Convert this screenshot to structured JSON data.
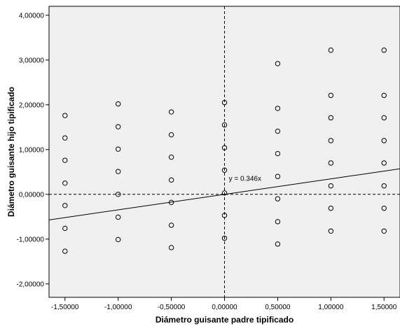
{
  "chart_data": {
    "type": "scatter",
    "xlabel": "Diámetro guisante padre tipificado",
    "ylabel": "Diámetro guisante hijo tipificado",
    "xlim": [
      -1.65,
      1.65
    ],
    "ylim": [
      -2.3,
      4.2
    ],
    "x_ticks": [
      -1.5,
      -1.0,
      -0.5,
      0.0,
      0.5,
      1.0,
      1.5
    ],
    "x_tick_labels": [
      "-1,50000",
      "-1,00000",
      "-0,50000",
      "0,00000",
      "0,50000",
      "1,00000",
      "1,50000"
    ],
    "y_ticks": [
      -2.0,
      -1.0,
      0.0,
      1.0,
      2.0,
      3.0,
      4.0
    ],
    "y_tick_labels": [
      "-2,00000",
      "-1,00000",
      "0,00000",
      "1,00000",
      "2,00000",
      "3,00000",
      "4,00000"
    ],
    "reference_lines": {
      "x": 0,
      "y": 0
    },
    "fit_line": {
      "slope": 0.346,
      "intercept": 0,
      "label": "y = 0.346x"
    },
    "points": [
      {
        "x": -1.5,
        "y": 1.76
      },
      {
        "x": -1.5,
        "y": 1.26
      },
      {
        "x": -1.5,
        "y": 0.76
      },
      {
        "x": -1.5,
        "y": 0.25
      },
      {
        "x": -1.5,
        "y": -0.25
      },
      {
        "x": -1.5,
        "y": -0.76
      },
      {
        "x": -1.5,
        "y": -1.27
      },
      {
        "x": -1.0,
        "y": 2.02
      },
      {
        "x": -1.0,
        "y": 1.51
      },
      {
        "x": -1.0,
        "y": 1.01
      },
      {
        "x": -1.0,
        "y": 0.51
      },
      {
        "x": -1.0,
        "y": 0.0
      },
      {
        "x": -1.0,
        "y": -0.51
      },
      {
        "x": -1.0,
        "y": -1.01
      },
      {
        "x": -0.5,
        "y": 1.84
      },
      {
        "x": -0.5,
        "y": 1.33
      },
      {
        "x": -0.5,
        "y": 0.83
      },
      {
        "x": -0.5,
        "y": 0.32
      },
      {
        "x": -0.5,
        "y": -0.18
      },
      {
        "x": -0.5,
        "y": -0.69
      },
      {
        "x": -0.5,
        "y": -1.19
      },
      {
        "x": 0.0,
        "y": 2.05
      },
      {
        "x": 0.0,
        "y": 1.55
      },
      {
        "x": 0.0,
        "y": 1.04
      },
      {
        "x": 0.0,
        "y": 0.54
      },
      {
        "x": 0.0,
        "y": 0.03
      },
      {
        "x": 0.0,
        "y": -0.47
      },
      {
        "x": 0.0,
        "y": -0.98
      },
      {
        "x": 0.5,
        "y": 2.92
      },
      {
        "x": 0.5,
        "y": 1.92
      },
      {
        "x": 0.5,
        "y": 1.41
      },
      {
        "x": 0.5,
        "y": 0.91
      },
      {
        "x": 0.5,
        "y": 0.4
      },
      {
        "x": 0.5,
        "y": -0.1
      },
      {
        "x": 0.5,
        "y": -0.61
      },
      {
        "x": 0.5,
        "y": -1.11
      },
      {
        "x": 1.0,
        "y": 3.22
      },
      {
        "x": 1.0,
        "y": 2.21
      },
      {
        "x": 1.0,
        "y": 1.71
      },
      {
        "x": 1.0,
        "y": 1.2
      },
      {
        "x": 1.0,
        "y": 0.7
      },
      {
        "x": 1.0,
        "y": 0.19
      },
      {
        "x": 1.0,
        "y": -0.31
      },
      {
        "x": 1.0,
        "y": -0.82
      },
      {
        "x": 1.5,
        "y": 3.22
      },
      {
        "x": 1.5,
        "y": 2.21
      },
      {
        "x": 1.5,
        "y": 1.71
      },
      {
        "x": 1.5,
        "y": 1.2
      },
      {
        "x": 1.5,
        "y": 0.7
      },
      {
        "x": 1.5,
        "y": 0.19
      },
      {
        "x": 1.5,
        "y": -0.31
      },
      {
        "x": 1.5,
        "y": -0.82
      }
    ],
    "colors": {
      "plot_background": "#f0f0f0",
      "marker_stroke": "#000000",
      "line": "#000000"
    }
  }
}
